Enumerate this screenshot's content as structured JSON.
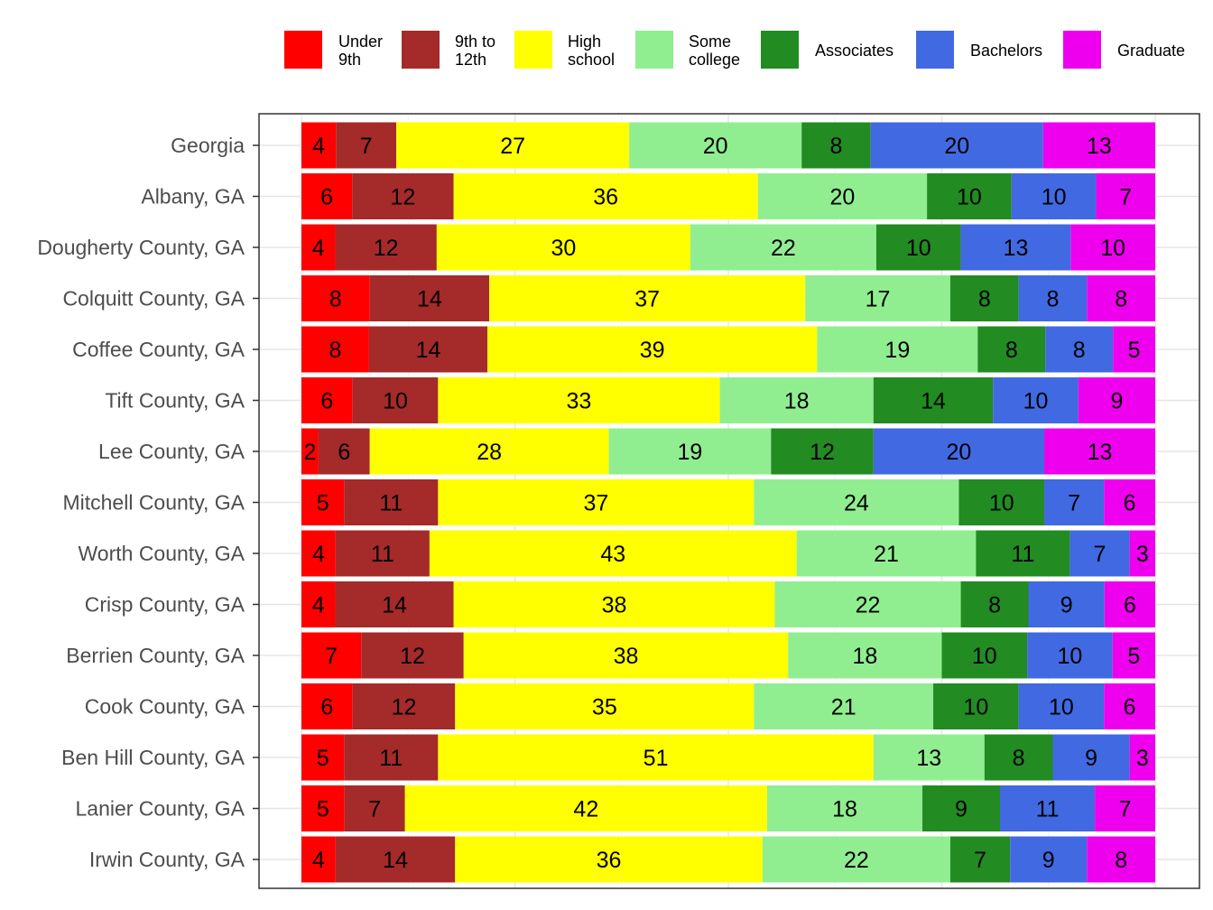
{
  "chart_data": {
    "type": "bar",
    "orientation": "horizontal",
    "stacked": true,
    "percent_stacked": true,
    "title": "",
    "xlabel": "",
    "ylabel": "",
    "legend_position": "top",
    "grid": true,
    "categories": [
      "Georgia",
      "Albany, GA",
      "Dougherty County, GA",
      "Colquitt County, GA",
      "Coffee County, GA",
      "Tift County, GA",
      "Lee County, GA",
      "Mitchell County, GA",
      "Worth County, GA",
      "Crisp County, GA",
      "Berrien County, GA",
      "Cook County, GA",
      "Ben Hill County, GA",
      "Lanier County, GA",
      "Irwin County, GA"
    ],
    "series": [
      {
        "name": "Under 9th",
        "legend_lines": [
          "Under",
          "9th"
        ],
        "color": "#ff0000",
        "values": [
          4,
          6,
          4,
          8,
          8,
          6,
          2,
          5,
          4,
          4,
          7,
          6,
          5,
          5,
          4
        ]
      },
      {
        "name": "9th to 12th",
        "legend_lines": [
          "9th to",
          "12th"
        ],
        "color": "#a52a2a",
        "values": [
          7,
          12,
          12,
          14,
          14,
          10,
          6,
          11,
          11,
          14,
          12,
          12,
          11,
          7,
          14
        ]
      },
      {
        "name": "High school",
        "legend_lines": [
          "High",
          "school"
        ],
        "color": "#ffff00",
        "values": [
          27,
          36,
          30,
          37,
          39,
          33,
          28,
          37,
          43,
          38,
          38,
          35,
          51,
          42,
          36
        ]
      },
      {
        "name": "Some college",
        "legend_lines": [
          "Some",
          "college"
        ],
        "color": "#90ee90",
        "values": [
          20,
          20,
          22,
          17,
          19,
          18,
          19,
          24,
          21,
          22,
          18,
          21,
          13,
          18,
          22
        ]
      },
      {
        "name": "Associates",
        "legend_lines": [
          "Associates"
        ],
        "color": "#228b22",
        "values": [
          8,
          10,
          10,
          8,
          8,
          14,
          12,
          10,
          11,
          8,
          10,
          10,
          8,
          9,
          7
        ]
      },
      {
        "name": "Bachelors",
        "legend_lines": [
          "Bachelors"
        ],
        "color": "#4169e1",
        "values": [
          20,
          10,
          13,
          8,
          8,
          10,
          20,
          7,
          7,
          9,
          10,
          10,
          9,
          11,
          9
        ]
      },
      {
        "name": "Graduate",
        "legend_lines": [
          "Graduate"
        ],
        "color": "#ee00ee",
        "values": [
          13,
          7,
          10,
          8,
          5,
          9,
          13,
          6,
          3,
          6,
          5,
          6,
          3,
          7,
          8
        ]
      }
    ]
  }
}
